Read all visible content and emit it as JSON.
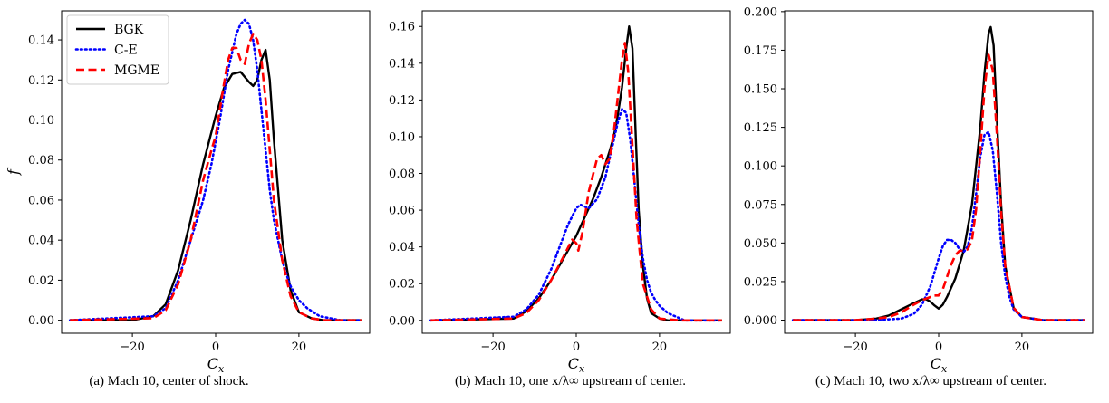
{
  "chart_data": [
    {
      "type": "line",
      "caption": "(a) Mach 10, center of shock.",
      "xlabel": "C_x",
      "ylabel": "f",
      "xlim": [
        -37,
        37
      ],
      "ylim": [
        -0.0065,
        0.1545
      ],
      "xticks": [
        -20,
        0,
        20
      ],
      "xtick_labels": [
        "−20",
        "0",
        "20"
      ],
      "yticks": [
        0.0,
        0.02,
        0.04,
        0.06,
        0.08,
        0.1,
        0.12,
        0.14
      ],
      "ytick_labels": [
        "0.00",
        "0.02",
        "0.04",
        "0.06",
        "0.08",
        "0.10",
        "0.12",
        "0.14"
      ],
      "legend": {
        "placement": "top-left",
        "entries": [
          "BGK",
          "C-E",
          "MGME"
        ]
      },
      "grid": false,
      "series": [
        {
          "name": "BGK",
          "style": "solid",
          "color": "#000000",
          "x": [
            -35,
            -20,
            -15,
            -12,
            -9,
            -6,
            -3,
            0,
            2,
            4,
            6,
            8,
            9,
            10,
            11,
            12,
            13,
            14,
            16,
            18,
            20,
            23,
            26,
            30,
            35
          ],
          "y": [
            0,
            0,
            0.002,
            0.008,
            0.025,
            0.05,
            0.078,
            0.102,
            0.116,
            0.123,
            0.124,
            0.119,
            0.117,
            0.12,
            0.13,
            0.135,
            0.12,
            0.09,
            0.04,
            0.015,
            0.004,
            0.001,
            0,
            0,
            0
          ]
        },
        {
          "name": "C-E",
          "style": "dotted",
          "color": "#0000ff",
          "x": [
            -35,
            -15,
            -12,
            -9,
            -6,
            -3,
            -1,
            1,
            3,
            5,
            6,
            7,
            8,
            9,
            10,
            11,
            12,
            13,
            14,
            15,
            16,
            17,
            18,
            20,
            22,
            25,
            30,
            35
          ],
          "y": [
            0,
            0.002,
            0.006,
            0.02,
            0.04,
            0.06,
            0.078,
            0.1,
            0.125,
            0.143,
            0.148,
            0.15,
            0.148,
            0.14,
            0.125,
            0.105,
            0.085,
            0.065,
            0.05,
            0.04,
            0.03,
            0.023,
            0.017,
            0.01,
            0.006,
            0.002,
            0,
            0
          ]
        },
        {
          "name": "MGME",
          "style": "dashed",
          "color": "#ff0000",
          "x": [
            -35,
            -15,
            -12,
            -9,
            -6,
            -3,
            -1,
            0,
            1,
            2,
            3,
            4,
            5,
            6,
            7,
            8,
            9,
            10,
            11,
            12,
            13,
            14,
            16,
            18,
            20,
            23,
            26,
            30,
            35
          ],
          "y": [
            0,
            0.001,
            0.005,
            0.018,
            0.04,
            0.07,
            0.085,
            0.092,
            0.105,
            0.118,
            0.13,
            0.136,
            0.136,
            0.13,
            0.128,
            0.138,
            0.143,
            0.14,
            0.13,
            0.11,
            0.085,
            0.06,
            0.03,
            0.012,
            0.004,
            0.001,
            0,
            0,
            0
          ]
        }
      ]
    },
    {
      "type": "line",
      "caption": "(b) Mach 10, one x/λ∞ upstream of center.",
      "xlabel": "C_x",
      "ylabel": "",
      "xlim": [
        -37,
        37
      ],
      "ylim": [
        -0.007,
        0.1685
      ],
      "xticks": [
        -20,
        0,
        20
      ],
      "xtick_labels": [
        "−20",
        "0",
        "20"
      ],
      "yticks": [
        0.0,
        0.02,
        0.04,
        0.06,
        0.08,
        0.1,
        0.12,
        0.14,
        0.16
      ],
      "ytick_labels": [
        "0.00",
        "0.02",
        "0.04",
        "0.06",
        "0.08",
        "0.10",
        "0.12",
        "0.14",
        "0.16"
      ],
      "legend": null,
      "grid": false,
      "series": [
        {
          "name": "BGK",
          "style": "solid",
          "color": "#000000",
          "x": [
            -35,
            -15,
            -12,
            -9,
            -6,
            -3,
            0,
            2,
            4,
            6,
            8,
            9,
            10,
            11,
            12,
            12.7,
            13.5,
            14.3,
            15,
            16,
            17,
            18,
            20,
            22,
            25,
            30,
            35
          ],
          "y": [
            0,
            0.001,
            0.005,
            0.012,
            0.022,
            0.034,
            0.046,
            0.056,
            0.066,
            0.078,
            0.092,
            0.1,
            0.112,
            0.127,
            0.148,
            0.16,
            0.148,
            0.1,
            0.06,
            0.03,
            0.012,
            0.004,
            0.001,
            0,
            0,
            0,
            0
          ]
        },
        {
          "name": "C-E",
          "style": "dotted",
          "color": "#0000ff",
          "x": [
            -35,
            -15,
            -12,
            -9,
            -6,
            -4,
            -2,
            0,
            1,
            2,
            3,
            5,
            7,
            9,
            10,
            11,
            12,
            13,
            14,
            15,
            16,
            17,
            18,
            19,
            20,
            22,
            24,
            26,
            30,
            35
          ],
          "y": [
            0,
            0.002,
            0.006,
            0.014,
            0.028,
            0.04,
            0.052,
            0.061,
            0.063,
            0.062,
            0.061,
            0.066,
            0.078,
            0.098,
            0.108,
            0.115,
            0.113,
            0.098,
            0.075,
            0.052,
            0.034,
            0.022,
            0.015,
            0.011,
            0.008,
            0.004,
            0.002,
            0,
            0,
            0
          ]
        },
        {
          "name": "MGME",
          "style": "dashed",
          "color": "#ff0000",
          "x": [
            -35,
            -15,
            -12,
            -9,
            -6,
            -3,
            -1,
            0,
            0.5,
            1.5,
            3,
            5,
            6,
            7,
            8,
            9,
            10,
            11,
            11.7,
            12.5,
            13.5,
            14.5,
            16,
            18,
            20,
            25,
            30,
            35
          ],
          "y": [
            0,
            0.001,
            0.004,
            0.011,
            0.022,
            0.035,
            0.044,
            0.042,
            0.038,
            0.048,
            0.07,
            0.088,
            0.09,
            0.085,
            0.088,
            0.102,
            0.122,
            0.142,
            0.151,
            0.135,
            0.095,
            0.055,
            0.02,
            0.006,
            0.001,
            0,
            0,
            0
          ]
        }
      ]
    },
    {
      "type": "line",
      "caption": "(c) Mach 10, two x/λ∞ upstream of center.",
      "xlabel": "C_x",
      "ylabel": "",
      "xlim": [
        -37,
        37
      ],
      "ylim": [
        -0.0085,
        0.2005
      ],
      "xticks": [
        -20,
        0,
        20
      ],
      "xtick_labels": [
        "−20",
        "0",
        "20"
      ],
      "yticks": [
        0.0,
        0.025,
        0.05,
        0.075,
        0.1,
        0.125,
        0.15,
        0.175,
        0.2
      ],
      "ytick_labels": [
        "0.000",
        "0.025",
        "0.050",
        "0.075",
        "0.100",
        "0.125",
        "0.150",
        "0.175",
        "0.200"
      ],
      "legend": null,
      "grid": false,
      "series": [
        {
          "name": "BGK",
          "style": "solid",
          "color": "#000000",
          "x": [
            -35,
            -20,
            -15,
            -12,
            -9,
            -6,
            -4,
            -3,
            -2,
            -1,
            0,
            1,
            2,
            4,
            6,
            8,
            10,
            11,
            12,
            12.5,
            13.2,
            14,
            15,
            16,
            18,
            20,
            25,
            30,
            35
          ],
          "y": [
            0,
            0,
            0.001,
            0.003,
            0.007,
            0.011,
            0.0135,
            0.0135,
            0.012,
            0.0095,
            0.0075,
            0.01,
            0.015,
            0.027,
            0.045,
            0.075,
            0.125,
            0.16,
            0.186,
            0.19,
            0.178,
            0.13,
            0.075,
            0.035,
            0.008,
            0.002,
            0,
            0,
            0
          ]
        },
        {
          "name": "C-E",
          "style": "dotted",
          "color": "#0000ff",
          "x": [
            -35,
            -15,
            -9,
            -6,
            -4,
            -2,
            0,
            1,
            2,
            3,
            4,
            5,
            6,
            7,
            8,
            9,
            10,
            11,
            12,
            13,
            14,
            15,
            16,
            17,
            18,
            20,
            25,
            30,
            35
          ],
          "y": [
            0,
            0,
            0.001,
            0.004,
            0.01,
            0.022,
            0.04,
            0.048,
            0.052,
            0.052,
            0.05,
            0.046,
            0.044,
            0.048,
            0.06,
            0.082,
            0.106,
            0.12,
            0.122,
            0.11,
            0.082,
            0.05,
            0.028,
            0.015,
            0.007,
            0.002,
            0,
            0,
            0
          ]
        },
        {
          "name": "MGME",
          "style": "dashed",
          "color": "#ff0000",
          "x": [
            -35,
            -20,
            -15,
            -12,
            -9,
            -6,
            -4,
            -2,
            -1,
            0,
            1,
            2,
            3,
            4,
            5,
            6,
            7,
            8,
            9,
            10,
            11,
            12,
            13,
            14,
            15,
            16,
            18,
            20,
            25,
            30,
            35
          ],
          "y": [
            0,
            0,
            0.001,
            0.002,
            0.005,
            0.01,
            0.013,
            0.015,
            0.016,
            0.016,
            0.02,
            0.028,
            0.036,
            0.042,
            0.045,
            0.045,
            0.046,
            0.052,
            0.072,
            0.11,
            0.15,
            0.172,
            0.162,
            0.12,
            0.07,
            0.035,
            0.008,
            0.002,
            0,
            0,
            0
          ]
        }
      ]
    }
  ]
}
